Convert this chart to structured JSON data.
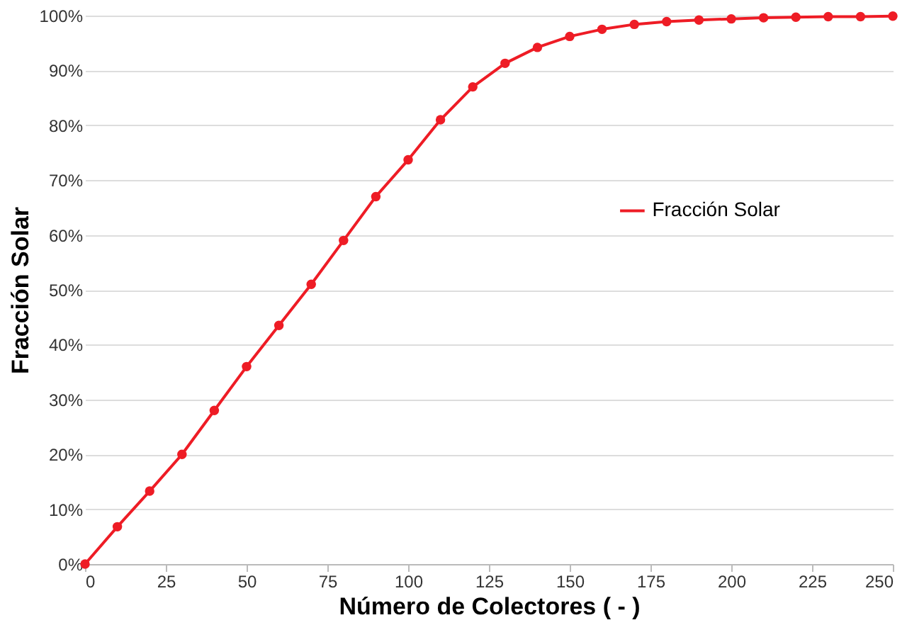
{
  "chart_data": {
    "type": "line",
    "xlabel": "Número de Colectores ( - )",
    "ylabel": "Fracción Solar",
    "x": [
      0,
      10,
      20,
      30,
      40,
      50,
      60,
      70,
      80,
      90,
      100,
      110,
      120,
      130,
      140,
      150,
      160,
      170,
      180,
      190,
      200,
      210,
      220,
      230,
      240,
      250
    ],
    "series": [
      {
        "name": "Fracción Solar",
        "color": "#ee1c25",
        "values": [
          0,
          6.8,
          13.3,
          20,
          28,
          36,
          43.5,
          51,
          59,
          67,
          73.7,
          81,
          87,
          91.3,
          94.2,
          96.2,
          97.5,
          98.4,
          98.9,
          99.2,
          99.4,
          99.6,
          99.7,
          99.8,
          99.8,
          99.9
        ]
      }
    ],
    "xlim": [
      0,
      250
    ],
    "xticks": [
      0,
      25,
      50,
      75,
      100,
      125,
      150,
      175,
      200,
      225,
      250
    ],
    "ylim": [
      0,
      100
    ],
    "yticks": [
      {
        "value": 0,
        "label": "0%"
      },
      {
        "value": 10,
        "label": "10%"
      },
      {
        "value": 20,
        "label": "20%"
      },
      {
        "value": 30,
        "label": "30%"
      },
      {
        "value": 40,
        "label": "40%"
      },
      {
        "value": 50,
        "label": "50%"
      },
      {
        "value": 60,
        "label": "60%"
      },
      {
        "value": 70,
        "label": "70%"
      },
      {
        "value": 80,
        "label": "80%"
      },
      {
        "value": 90,
        "label": "90%"
      },
      {
        "value": 100,
        "label": "100%"
      }
    ],
    "grid": "y",
    "legend": "right",
    "marker": "circle",
    "line_style": "solid"
  }
}
